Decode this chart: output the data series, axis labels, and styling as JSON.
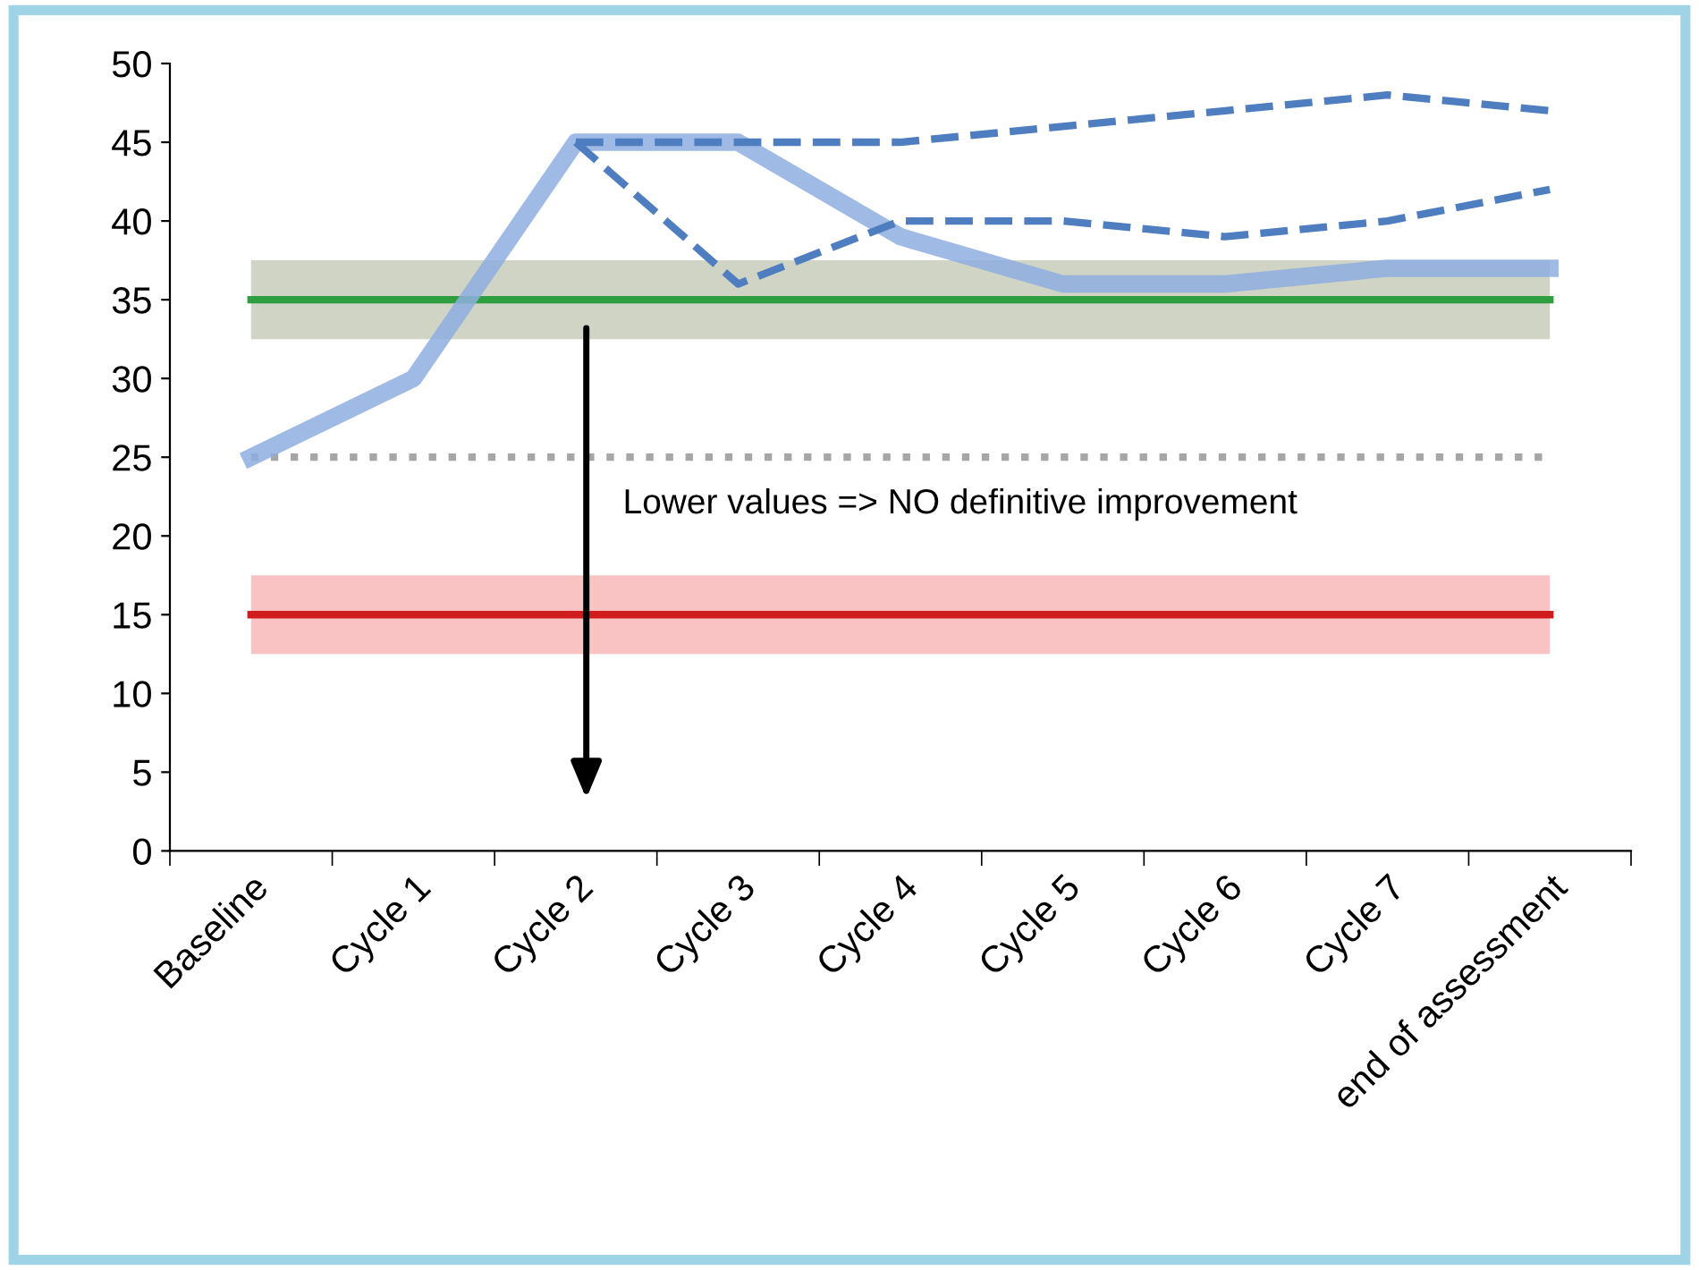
{
  "chart_data": {
    "type": "line",
    "categories": [
      "Baseline",
      "Cycle 1",
      "Cycle 2",
      "Cycle 3",
      "Cycle 4",
      "Cycle 5",
      "Cycle 6",
      "Cycle 7",
      "end of assessment"
    ],
    "series": [
      {
        "color": "#8eaee0",
        "line_style": "solid",
        "values": [
          25,
          30,
          45,
          45,
          39,
          36,
          36,
          37,
          37
        ]
      },
      {
        "color": "#4f7ec0",
        "line_style": "dashed",
        "values": [
          null,
          null,
          45,
          45,
          45,
          46,
          47,
          48,
          47
        ]
      },
      {
        "color": "#4f7ec0",
        "line_style": "dashed",
        "values": [
          null,
          null,
          45,
          36,
          40,
          40,
          39,
          40,
          42
        ]
      }
    ],
    "ylim": [
      0,
      50
    ],
    "yticks": [
      0,
      5,
      10,
      15,
      20,
      25,
      30,
      35,
      40,
      45,
      50
    ],
    "ref_lines": [
      {
        "axis": "y",
        "value": 35,
        "color": "#2e9e3e",
        "line_style": "solid"
      },
      {
        "axis": "y",
        "value": 25,
        "color": "#a6a6a6",
        "line_style": "dotted"
      },
      {
        "axis": "y",
        "value": 15,
        "color": "#d01c1c",
        "line_style": "solid"
      }
    ],
    "bands": [
      {
        "axis": "y",
        "from": 32.5,
        "to": 37.5,
        "color": "#cfd4c4"
      },
      {
        "axis": "y",
        "from": 12.5,
        "to": 17.5,
        "color": "#f9c3c3"
      }
    ],
    "annotations": [
      "Lower values => NO definitive improvement"
    ],
    "grid": false,
    "legend": false,
    "marker": "none"
  }
}
